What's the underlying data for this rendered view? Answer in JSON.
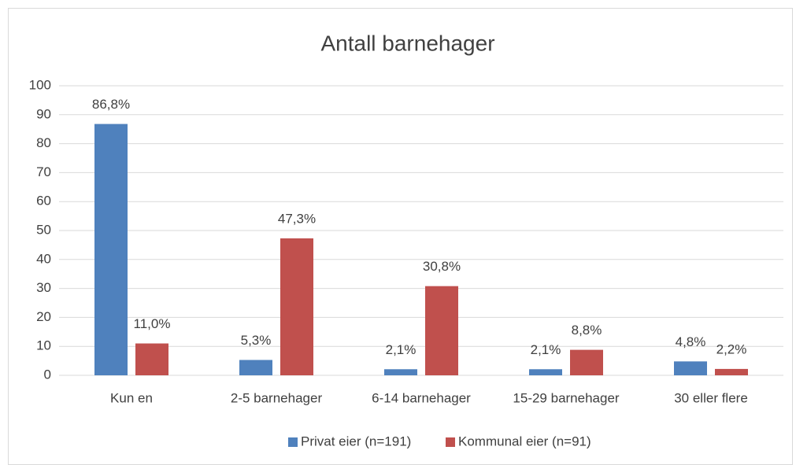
{
  "chart_data": {
    "type": "bar",
    "title": "Antall barnehager",
    "categories": [
      "Kun en",
      "2-5 barnehager",
      "6-14 barnehager",
      "15-29 barnehager",
      "30 eller flere"
    ],
    "series": [
      {
        "name": "Privat eier (n=191)",
        "color": "#4f81bd",
        "values": [
          86.8,
          5.3,
          2.1,
          2.1,
          4.8
        ],
        "value_labels": [
          "86,8%",
          "5,3%",
          "2,1%",
          "2,1%",
          "4,8%"
        ]
      },
      {
        "name": "Kommunal eier (n=91)",
        "color": "#c0504d",
        "values": [
          11.0,
          47.3,
          30.8,
          8.8,
          2.2
        ],
        "value_labels": [
          "11,0%",
          "47,3%",
          "30,8%",
          "8,8%",
          "2,2%"
        ]
      }
    ],
    "ylim": [
      0,
      100
    ],
    "yticks": [
      0,
      10,
      20,
      30,
      40,
      50,
      60,
      70,
      80,
      90,
      100
    ],
    "grid": true,
    "legend": "bottom"
  }
}
